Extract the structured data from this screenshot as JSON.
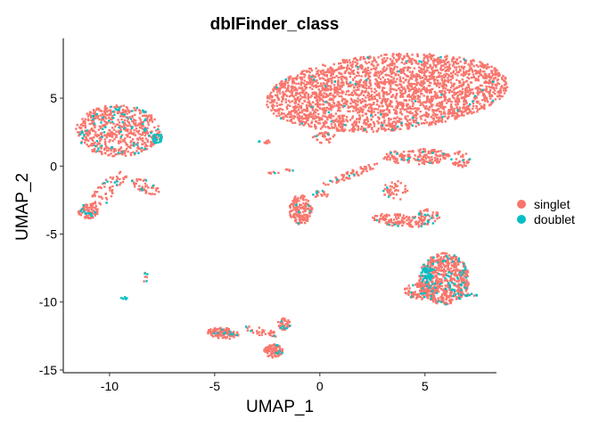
{
  "chart_data": {
    "type": "scatter",
    "title": "dblFinder_class",
    "xlabel": "UMAP_1",
    "ylabel": "UMAP_2",
    "xlim": [
      -12.2,
      8.4
    ],
    "ylim": [
      -15.2,
      9.4
    ],
    "xticks": [
      -10,
      -5,
      0,
      5
    ],
    "yticks": [
      5,
      0,
      -5,
      -10,
      -15
    ],
    "xtick_labels": [
      "-10",
      "-5",
      "0",
      "5"
    ],
    "ytick_labels": [
      "5",
      "0",
      "-5",
      "-10",
      "-15"
    ],
    "grid": false,
    "legend_position": "right",
    "series": [
      {
        "name": "singlet",
        "color": "#F8766D"
      },
      {
        "name": "doublet",
        "color": "#00BFC4"
      }
    ],
    "clusters": [
      {
        "cx": 3.2,
        "cy": 5.4,
        "rx": 5.8,
        "ry": 2.8,
        "singlets": 2600,
        "doublets": 45,
        "angle": 8
      },
      {
        "cx": -9.6,
        "cy": 2.6,
        "rx": 2.0,
        "ry": 1.9,
        "singlets": 520,
        "doublets": 70,
        "angle": 0
      },
      {
        "cx": -7.7,
        "cy": 2.0,
        "rx": 0.28,
        "ry": 0.4,
        "singlets": 8,
        "doublets": 25,
        "angle": 0
      },
      {
        "cx": -10.1,
        "cy": -1.8,
        "rx": 0.5,
        "ry": 1.6,
        "singlets": 60,
        "doublets": 6,
        "angle": -30
      },
      {
        "cx": -8.3,
        "cy": -1.5,
        "rx": 0.8,
        "ry": 0.4,
        "singlets": 40,
        "doublets": 5,
        "angle": -40
      },
      {
        "cx": -11.0,
        "cy": -3.3,
        "rx": 0.5,
        "ry": 0.55,
        "singlets": 70,
        "doublets": 12,
        "angle": 0
      },
      {
        "cx": 4.6,
        "cy": 0.7,
        "rx": 1.6,
        "ry": 0.6,
        "singlets": 150,
        "doublets": 10,
        "angle": 0
      },
      {
        "cx": 6.7,
        "cy": 0.5,
        "rx": 0.45,
        "ry": 0.6,
        "singlets": 35,
        "doublets": 3,
        "angle": 0
      },
      {
        "cx": 0.2,
        "cy": 2.1,
        "rx": 0.55,
        "ry": 0.4,
        "singlets": 30,
        "doublets": 2,
        "angle": 0
      },
      {
        "cx": -2.6,
        "cy": 1.8,
        "rx": 0.3,
        "ry": 0.12,
        "singlets": 6,
        "doublets": 2,
        "angle": 0
      },
      {
        "cx": -1.8,
        "cy": -0.4,
        "rx": 0.8,
        "ry": 0.12,
        "singlets": 10,
        "doublets": 2,
        "angle": 10
      },
      {
        "cx": 1.5,
        "cy": -0.6,
        "rx": 1.6,
        "ry": 0.25,
        "singlets": 55,
        "doublets": 4,
        "angle": 30
      },
      {
        "cx": 3.6,
        "cy": -1.8,
        "rx": 0.6,
        "ry": 0.7,
        "singlets": 40,
        "doublets": 3,
        "angle": 0
      },
      {
        "cx": -0.9,
        "cy": -3.2,
        "rx": 0.55,
        "ry": 1.1,
        "singlets": 150,
        "doublets": 6,
        "angle": 0
      },
      {
        "cx": 0.0,
        "cy": -2.1,
        "rx": 0.4,
        "ry": 0.3,
        "singlets": 15,
        "doublets": 4,
        "angle": 0
      },
      {
        "cx": 3.8,
        "cy": -4.0,
        "rx": 1.3,
        "ry": 0.45,
        "singlets": 110,
        "doublets": 6,
        "angle": -10
      },
      {
        "cx": 5.1,
        "cy": -3.7,
        "rx": 0.6,
        "ry": 0.6,
        "singlets": 45,
        "doublets": 10,
        "angle": 0
      },
      {
        "cx": 5.9,
        "cy": -8.3,
        "rx": 1.2,
        "ry": 1.9,
        "singlets": 560,
        "doublets": 75,
        "angle": 0
      },
      {
        "cx": 4.8,
        "cy": -9.2,
        "rx": 0.8,
        "ry": 0.6,
        "singlets": 90,
        "doublets": 10,
        "angle": 0
      },
      {
        "cx": 5.1,
        "cy": -8.0,
        "rx": 0.3,
        "ry": 0.6,
        "singlets": 0,
        "doublets": 45,
        "angle": 0
      },
      {
        "cx": 7.2,
        "cy": -9.5,
        "rx": 0.3,
        "ry": 0.12,
        "singlets": 6,
        "doublets": 6,
        "angle": 0
      },
      {
        "cx": -9.3,
        "cy": -9.7,
        "rx": 0.15,
        "ry": 0.12,
        "singlets": 0,
        "doublets": 6,
        "angle": 0
      },
      {
        "cx": -8.3,
        "cy": -8.2,
        "rx": 0.15,
        "ry": 0.4,
        "singlets": 4,
        "doublets": 3,
        "angle": 0
      },
      {
        "cx": -4.6,
        "cy": -12.3,
        "rx": 0.75,
        "ry": 0.4,
        "singlets": 120,
        "doublets": 10,
        "angle": -10
      },
      {
        "cx": -2.8,
        "cy": -12.2,
        "rx": 0.9,
        "ry": 0.3,
        "singlets": 30,
        "doublets": 3,
        "angle": -20
      },
      {
        "cx": -1.7,
        "cy": -11.6,
        "rx": 0.3,
        "ry": 0.45,
        "singlets": 35,
        "doublets": 6,
        "angle": 0
      },
      {
        "cx": -2.2,
        "cy": -13.6,
        "rx": 0.45,
        "ry": 0.5,
        "singlets": 80,
        "doublets": 6,
        "angle": 0
      }
    ]
  }
}
